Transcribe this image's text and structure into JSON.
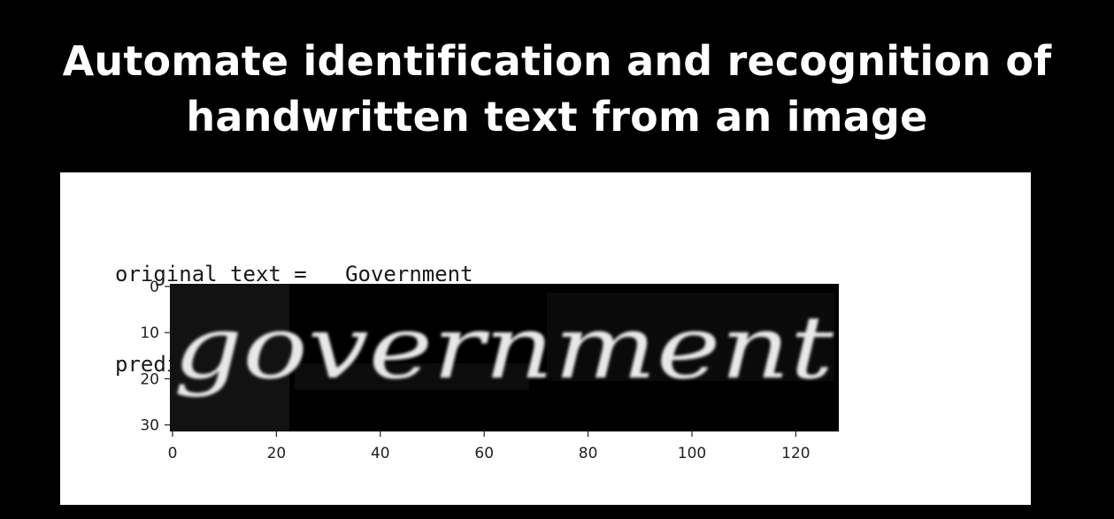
{
  "slide": {
    "title_line1": "Automate identification and recognition of",
    "title_line2": "handwritten text from an image"
  },
  "output": {
    "original_line": "original_text =   Government",
    "predicted_line": "predicted text = Government"
  },
  "image": {
    "handwritten_word": "government"
  },
  "chart_data": {
    "type": "image",
    "x_ticks": [
      "0",
      "20",
      "40",
      "60",
      "80",
      "100",
      "120"
    ],
    "y_ticks": [
      "0",
      "10",
      "20",
      "30"
    ],
    "xlim": [
      0,
      128
    ],
    "ylim": [
      32,
      0
    ],
    "grid": false
  }
}
